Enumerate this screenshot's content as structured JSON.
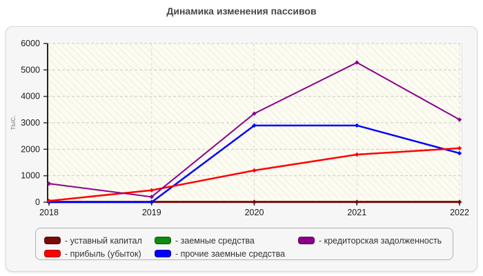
{
  "page": {
    "title": "Динамика изменения пассивов"
  },
  "chart_data": {
    "type": "line",
    "title": "Динамика изменения пассивов",
    "ylabel": "тыс.",
    "xlabel": "",
    "categories": [
      "2018",
      "2019",
      "2020",
      "2021",
      "2022"
    ],
    "ylim": [
      0,
      6000
    ],
    "ytick_step": 1000,
    "yticks": [
      0,
      1000,
      2000,
      3000,
      4000,
      5000,
      6000
    ],
    "grid": true,
    "legend_position": "bottom",
    "series": [
      {
        "name": "уставный капитал",
        "label": "- уставный капитал",
        "color": "#7b0a0a",
        "width": 3,
        "values": [
          10,
          10,
          10,
          10,
          10
        ]
      },
      {
        "name": "прибыль (убыток)",
        "label": "- прибыль (убыток)",
        "color": "#ff0000",
        "width": 2.5,
        "values": [
          50,
          450,
          1200,
          1800,
          2040
        ]
      },
      {
        "name": "заемные средства",
        "label": "- заемные средства",
        "color": "#0f8a0f",
        "width": 2,
        "values": [
          0,
          0,
          0,
          0,
          0
        ]
      },
      {
        "name": "прочие заемные средства",
        "label": "- прочие заемные средства",
        "color": "#0000ff",
        "width": 2.5,
        "values": [
          0,
          0,
          2900,
          2900,
          1850
        ]
      },
      {
        "name": "кредиторская задолженность",
        "label": "- кредиторская задолженность",
        "color": "#8b008b",
        "width": 2,
        "values": [
          700,
          200,
          3350,
          5280,
          3120
        ]
      }
    ],
    "draw_order": [
      2,
      0,
      3,
      1,
      4
    ]
  }
}
